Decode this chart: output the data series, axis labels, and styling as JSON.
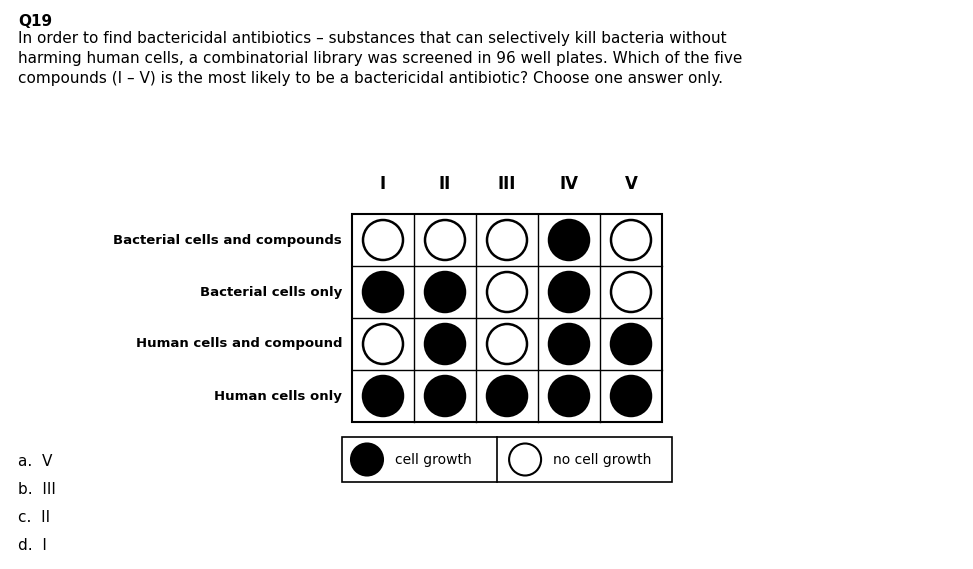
{
  "title_line1": "Q19",
  "title_body": "In order to find bactericidal antibiotics – substances that can selectively kill bacteria without\nharming human cells, a combinatorial library was screened in 96 well plates. Which of the five\ncompounds (I – V) is the most likely to be a bactericidal antibiotic? Choose one answer only.",
  "col_headers": [
    "I",
    "II",
    "III",
    "IV",
    "V"
  ],
  "row_labels": [
    "Bacterial cells and compounds",
    "Bacterial cells only",
    "Human cells and compound",
    "Human cells only"
  ],
  "grid": [
    [
      0,
      0,
      0,
      1,
      0
    ],
    [
      1,
      1,
      0,
      1,
      0
    ],
    [
      0,
      1,
      0,
      1,
      1
    ],
    [
      1,
      1,
      1,
      1,
      1
    ]
  ],
  "answers": [
    "a.  V",
    "b.  III",
    "c.  II",
    "d.  I"
  ],
  "legend_filled": "cell growth",
  "legend_empty": "no cell growth",
  "bg_color": "#ffffff",
  "text_color": "#000000",
  "circle_filled": "#000000",
  "circle_empty": "#ffffff",
  "circle_edge": "#000000"
}
